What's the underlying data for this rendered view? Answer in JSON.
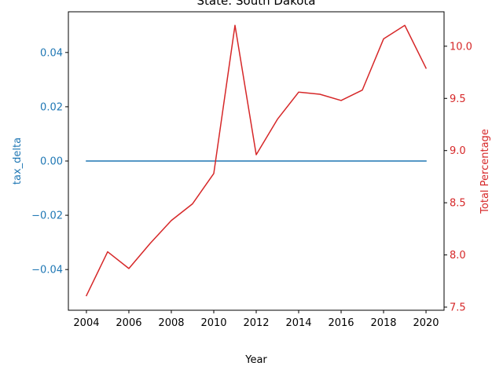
{
  "chart_data": {
    "type": "line",
    "title": "State: South Dakota",
    "xlabel": "Year",
    "ylabel_left": "tax_delta",
    "ylabel_right": "Total Percentage",
    "xlim": [
      2003.15,
      2020.85
    ],
    "ylim_left": [
      -0.055,
      0.055
    ],
    "ylim_right": [
      7.47,
      10.33
    ],
    "xticks": [
      2004,
      2006,
      2008,
      2010,
      2012,
      2014,
      2016,
      2018,
      2020
    ],
    "yticks_left": [
      -0.04,
      -0.02,
      0.0,
      0.02,
      0.04
    ],
    "yticks_left_labels": [
      "−0.04",
      "−0.02",
      "0.00",
      "0.02",
      "0.04"
    ],
    "yticks_right": [
      7.5,
      8.0,
      8.5,
      9.0,
      9.5,
      10.0
    ],
    "yticks_right_labels": [
      "7.5",
      "8.0",
      "8.5",
      "9.0",
      "9.5",
      "10.0"
    ],
    "grid": false,
    "colors": {
      "left": "#1f77b4",
      "right": "#d62728"
    },
    "x": [
      2004,
      2005,
      2006,
      2007,
      2008,
      2009,
      2010,
      2011,
      2012,
      2013,
      2014,
      2015,
      2016,
      2017,
      2018,
      2019,
      2020
    ],
    "series": [
      {
        "name": "tax_delta",
        "axis": "left",
        "values": [
          0,
          0,
          0,
          0,
          0,
          0,
          0,
          0,
          0,
          0,
          0,
          0,
          0,
          0,
          0,
          0,
          0
        ]
      },
      {
        "name": "Total Percentage",
        "axis": "right",
        "values": [
          7.61,
          8.03,
          7.87,
          8.11,
          8.33,
          8.49,
          8.78,
          10.2,
          8.96,
          9.3,
          9.56,
          9.54,
          9.48,
          9.58,
          10.07,
          10.2,
          9.79
        ]
      }
    ]
  }
}
